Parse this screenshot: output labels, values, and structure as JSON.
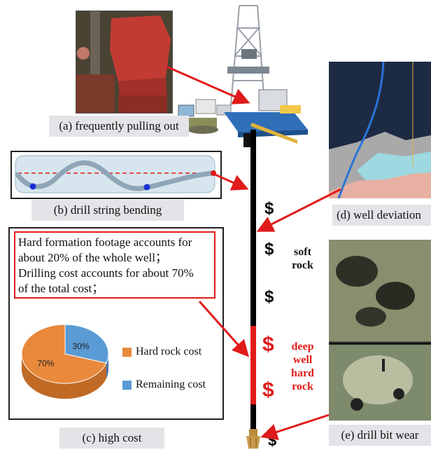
{
  "captions": {
    "a": "(a) frequently pulling out",
    "b": "(b) drill string bending",
    "c": "(c) high cost",
    "d": "(d) well deviation",
    "e": "(e)  drill bit wear"
  },
  "cost_note": {
    "lines": [
      "Hard formation footage accounts for",
      "about 20% of the whole well；",
      "Drilling cost accounts for about 70%",
      "of the total cost；"
    ]
  },
  "well_column": {
    "dollar_symbol": "$",
    "soft_label": [
      "soft",
      "rock"
    ],
    "hard_label": [
      "deep",
      "well",
      "hard",
      "rock"
    ]
  },
  "colors": {
    "arrow": "#e01b1b",
    "hard_rock": "#e9893c",
    "remaining": "#5b9bd5",
    "hard_text": "#e01b1b",
    "drill_string": "#000000"
  },
  "chart_data": {
    "type": "pie",
    "categories": [
      "Hard rock cost",
      "Remaining cost"
    ],
    "values": [
      70,
      30
    ],
    "data_labels": [
      "70%",
      "30%"
    ],
    "legend_position": "right"
  }
}
